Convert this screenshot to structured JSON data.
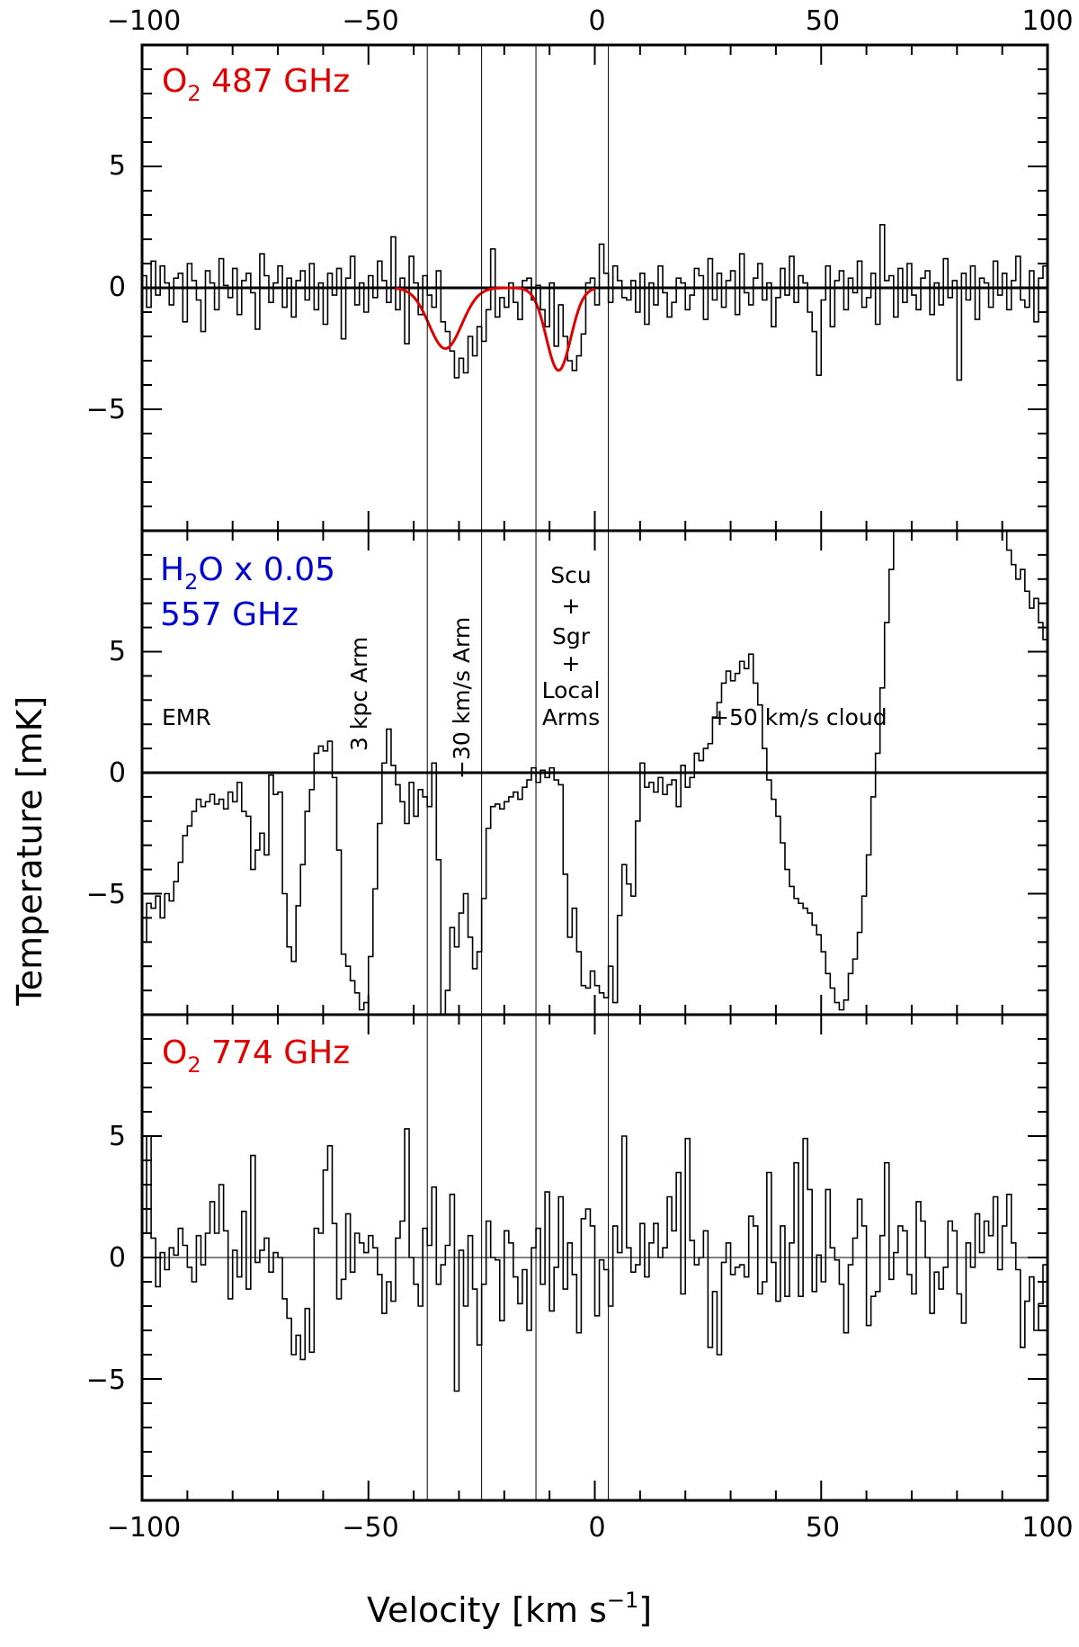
{
  "chart_data": {
    "type": "line",
    "xlabel": "Velocity [km s",
    "xlabel_sup": "−1",
    "xlabel_end": "]",
    "ylabel": "Temperature [mK]",
    "xlim": [
      -100,
      100
    ],
    "x_tick_labels": [
      "−100",
      "−50",
      "0",
      "50",
      "100"
    ],
    "x_ticks": [
      -100,
      -50,
      0,
      50,
      100
    ],
    "y_tick_labels": [
      "5",
      "0",
      "−5"
    ],
    "y_ticks": [
      5,
      0,
      -5
    ],
    "vertical_lines": [
      -37,
      -25,
      -13,
      3
    ],
    "panels": [
      {
        "label_main": "O",
        "label_sub": "2",
        "label_rest": " 487 GHz",
        "label_color": "#e00000",
        "ylim": [
          -10,
          10
        ],
        "zero_line": "thick",
        "fit": {
          "color": "#e00000",
          "components": [
            {
              "center": -33,
              "amplitude": -2.5,
              "sigma": 3.6
            },
            {
              "center": -8,
              "amplitude": -3.4,
              "sigma": 2.7
            }
          ],
          "x_range": [
            -44,
            0
          ]
        },
        "series": {
          "step": 1,
          "x_start": -100,
          "values": [
            0.5,
            -0.8,
            1.1,
            -0.3,
            0.9,
            0.2,
            -0.7,
            0.4,
            0.6,
            -1.4,
            1.0,
            0.3,
            -0.5,
            -1.8,
            0.7,
            0.2,
            -0.9,
            1.2,
            0.1,
            -0.4,
            0.8,
            -1.1,
            0.3,
            0.6,
            -0.2,
            -1.7,
            1.4,
            0.5,
            -0.6,
            0.2,
            0.9,
            -0.8,
            0.4,
            -1.2,
            0.3,
            0.7,
            -0.5,
            1.0,
            -0.9,
            0.2,
            -1.5,
            0.6,
            -0.3,
            0.8,
            -2.1,
            0.4,
            1.3,
            -0.7,
            0.2,
            -1.0,
            0.5,
            -0.4,
            1.1,
            0.3,
            -0.6,
            2.1,
            -0.9,
            0.4,
            -2.3,
            1.3,
            0.2,
            -1.1,
            0.5,
            -0.3,
            -0.8,
            0.7,
            -1.4,
            -1.8,
            -2.6,
            -3.7,
            -2.9,
            -3.5,
            -2.0,
            -2.8,
            -1.6,
            -2.2,
            -0.9,
            1.6,
            -1.2,
            -0.4,
            -0.8,
            0.2,
            -0.6,
            -1.3,
            0.3,
            0.4,
            -0.5,
            0.1,
            -0.9,
            -1.6,
            0.2,
            -2.4,
            -0.7,
            -2.0,
            -3.0,
            -3.4,
            -2.8,
            -1.9,
            0.2,
            0.4,
            -0.7,
            1.8,
            0.6,
            -0.6,
            0.9,
            0.3,
            -0.4,
            -0.5,
            0.3,
            -1.0,
            0.6,
            -1.5,
            0.2,
            -0.7,
            0.9,
            -0.2,
            -1.2,
            -0.6,
            0.4,
            0.2,
            -0.9,
            -0.3,
            0.8,
            0.5,
            -1.3,
            1.2,
            -0.5,
            0.6,
            -0.8,
            0.3,
            0.7,
            -1.1,
            1.4,
            -0.2,
            -0.7,
            0.4,
            1.0,
            -0.5,
            0.2,
            -1.6,
            -0.4,
            0.8,
            -0.3,
            1.3,
            -0.6,
            0.5,
            0.2,
            -1.0,
            -1.8,
            -3.6,
            -0.5,
            0.9,
            -1.6,
            0.3,
            0.7,
            -0.9,
            0.4,
            -0.2,
            1.1,
            -0.8,
            -0.4,
            0.6,
            -1.5,
            2.6,
            0.3,
            0.5,
            -1.2,
            0.8,
            -0.6,
            1.0,
            -0.3,
            -0.9,
            0.4,
            0.7,
            -1.1,
            0.2,
            -0.7,
            1.2,
            -0.4,
            0.3,
            -3.8,
            0.6,
            -0.5,
            0.9,
            -1.3,
            0.4,
            0.2,
            -0.8,
            1.1,
            -0.3,
            0.6,
            -0.9,
            0.3,
            1.3,
            -0.5,
            -0.8,
            0.7,
            -1.4,
            0.4,
            0.9,
            -0.2,
            -2.5,
            0.6,
            0.2,
            1.0,
            -0.6,
            0.3,
            -0.3,
            0.8
          ]
        }
      },
      {
        "label_line1_main": "H",
        "label_line1_sub": "2",
        "label_line1_rest": "O x 0.05",
        "label_line2": "557 GHz",
        "label_color": "#0000d0",
        "ylim": [
          -10,
          10
        ],
        "zero_line": "thick",
        "annotations": {
          "emr": "EMR",
          "three_kpc": "3 kpc Arm",
          "minus30": "−30 km/s Arm",
          "scu_lines": [
            "Scu",
            "+",
            "Sgr",
            "+",
            "Local",
            "Arms"
          ],
          "plus50": "+50 km/s cloud"
        },
        "series": {
          "step": 1,
          "x_start": -100,
          "values": [
            -7,
            -5.4,
            -5.6,
            -5.1,
            -6.0,
            -5.0,
            -5.3,
            -4.5,
            -3.7,
            -2.6,
            -2.2,
            -1.6,
            -1.1,
            -1.4,
            -1.2,
            -0.9,
            -1.3,
            -1.1,
            -1.5,
            -0.8,
            -1.2,
            -0.4,
            -1.6,
            -1.8,
            -4.0,
            -3.2,
            -2.5,
            -3.4,
            -0.1,
            -0.9,
            -0.8,
            -5.0,
            -7.2,
            -7.8,
            -5.5,
            -3.8,
            -1.6,
            -0.7,
            0.8,
            1.1,
            0.9,
            1.3,
            -0.2,
            -3.2,
            -7.5,
            -8.0,
            -8.6,
            -9.1,
            -9.8,
            -9.5,
            -7.6,
            -4.8,
            -2.1,
            0.4,
            1.8,
            0.3,
            -0.5,
            -1.2,
            -2.1,
            -0.4,
            -1.8,
            -0.7,
            -1.0,
            -1.4,
            0.4,
            -3.6,
            -10,
            -9.0,
            -6.4,
            -7.2,
            -5.8,
            -5.0,
            -6.8,
            -8.1,
            -7.4,
            -5.2,
            -2.3,
            -1.4,
            -1.3,
            -1.5,
            -1.2,
            -1.0,
            -0.8,
            -1.1,
            -0.6,
            -0.3,
            0.2,
            -0.4,
            0.1,
            -0.2,
            0.2,
            -0.3,
            -0.5,
            -4.2,
            -6.8,
            -5.6,
            -7.4,
            -8.8,
            -8.9,
            -8.2,
            -8.8,
            -9.1,
            -9.3,
            -8.0,
            -9.5,
            -5.9,
            -3.8,
            -4.6,
            -5.1,
            -2.0,
            0.4,
            -0.6,
            -0.4,
            -0.8,
            -0.2,
            -0.9,
            -0.5,
            -0.3,
            -1.4,
            0.3,
            -0.6,
            -0.2,
            0.8,
            0.5,
            1.0,
            1.2,
            2.3,
            2.9,
            3.7,
            4.2,
            3.8,
            4.1,
            4.6,
            4.3,
            4.9,
            3.7,
            2.8,
            1.0,
            -0.3,
            -1.1,
            -1.8,
            -2.9,
            -4.0,
            -4.7,
            -5.2,
            -5.4,
            -5.6,
            -5.8,
            -6.3,
            -6.7,
            -7.4,
            -8.3,
            -8.9,
            -9.5,
            -9.8,
            -9.4,
            -8.3,
            -7.7,
            -6.6,
            -5.1,
            -3.4,
            -1.0,
            0.8,
            3.5,
            6.2,
            8.4,
            10,
            10,
            10,
            10,
            10,
            10,
            10,
            10,
            10,
            10,
            10,
            10,
            10,
            10,
            10,
            10,
            10,
            10,
            10,
            10,
            10,
            10,
            10,
            10,
            10,
            9.2,
            8.6,
            8.0,
            8.4,
            7.5,
            6.8,
            7.2,
            6.2,
            5.5,
            5.8,
            4.7,
            3.9,
            4.5,
            4.2,
            5.1,
            4.4,
            4.8,
            4.6
          ]
        }
      },
      {
        "label_main": "O",
        "label_sub": "2",
        "label_rest": " 774 GHz",
        "label_color": "#e00000",
        "ylim": [
          -10,
          10
        ],
        "zero_line": "thin",
        "series": {
          "step": 1,
          "x_start": -100,
          "values": [
            1.0,
            5.0,
            0.8,
            -1.2,
            0.2,
            -0.5,
            0.4,
            0.1,
            1.2,
            0.5,
            -0.4,
            -1.0,
            0.9,
            -0.3,
            1.0,
            2.3,
            1.0,
            3.0,
            1.1,
            -1.7,
            0.3,
            -0.8,
            1.9,
            -1.3,
            4.2,
            -0.2,
            0.3,
            0.8,
            -0.6,
            0.2,
            0.0,
            -1.7,
            -2.5,
            -4.0,
            -3.2,
            -4.2,
            -2.1,
            -3.9,
            1.2,
            1.0,
            3.6,
            4.6,
            1.4,
            -1.7,
            -0.9,
            1.8,
            -0.6,
            1.0,
            0.6,
            0.2,
            0.9,
            0.4,
            -0.7,
            -2.3,
            -1.0,
            -1.8,
            0.8,
            1.5,
            5.3,
            0.0,
            -1.1,
            -2.0,
            1.2,
            0.5,
            2.9,
            -1.1,
            -0.3,
            0.5,
            2.6,
            -5.5,
            0.3,
            -2.0,
            0.9,
            -1.3,
            -3.6,
            -1.1,
            1.5,
            0.0,
            -0.1,
            -2.6,
            1.1,
            0.6,
            -0.8,
            -1.9,
            -0.5,
            -3.0,
            0.4,
            1.2,
            -1.1,
            2.7,
            -2.2,
            -0.4,
            2.5,
            -1.3,
            0.6,
            -0.7,
            -3.1,
            1.6,
            2.0,
            1.3,
            -2.4,
            -0.1,
            -0.5,
            -2.0,
            1.3,
            0.2,
            5.0,
            0.4,
            -0.6,
            -0.3,
            1.4,
            -0.8,
            0.6,
            1.4,
            0.0,
            0.4,
            2.5,
            1.1,
            3.5,
            -1.5,
            4.9,
            0.7,
            -0.3,
            0.0,
            1.1,
            -3.7,
            -1.4,
            -4.0,
            -0.2,
            0.6,
            -0.7,
            -0.4,
            -0.3,
            -0.8,
            1.7,
            1.3,
            -1.5,
            -1.0,
            3.5,
            -0.2,
            -1.8,
            1.3,
            -1.6,
            0.6,
            3.9,
            -1.6,
            4.9,
            2.8,
            -1.4,
            0.1,
            -1.0,
            2.8,
            0.4,
            -0.1,
            -1.1,
            -3.1,
            -0.3,
            0.8,
            2.4,
            1.3,
            -2.8,
            -1.6,
            -1.4,
            0.9,
            3.9,
            -0.9,
            0.2,
            1.3,
            1.1,
            -0.7,
            -1.5,
            2.3,
            1.5,
            0.0,
            -2.3,
            -0.6,
            -1.3,
            -0.4,
            1.5,
            1.1,
            -1.5,
            -2.7,
            0.6,
            -0.4,
            1.8,
            0.2,
            1.5,
            0.9,
            2.5,
            -0.5,
            1.3,
            2.6,
            0.6,
            -0.5,
            -3.7,
            -1.8,
            -0.8,
            -3.0,
            -1.9,
            -0.3,
            0.6,
            -5.8,
            -4.0
          ]
        }
      }
    ]
  }
}
